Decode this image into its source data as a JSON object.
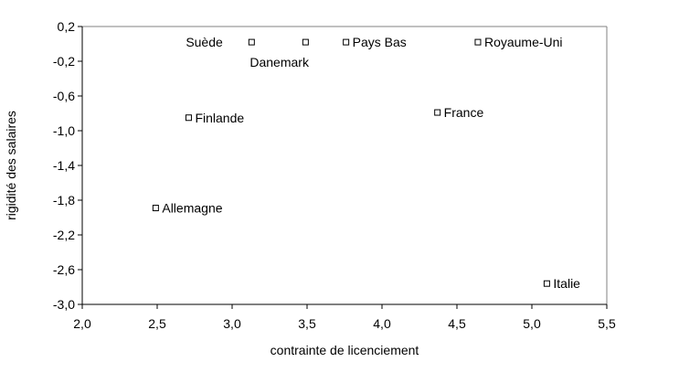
{
  "chart_data": {
    "type": "scatter",
    "title": "",
    "xlabel": "contrainte de licenciement",
    "ylabel": "rigidité des salaires",
    "xlim": [
      2.0,
      5.5
    ],
    "ylim": [
      -3.0,
      0.2
    ],
    "xticks": [
      "2,0",
      "2,5",
      "3,0",
      "3,5",
      "4,0",
      "4,5",
      "5,0",
      "5,5"
    ],
    "yticks": [
      "0,2",
      "-0,2",
      "-0,6",
      "-1,0",
      "-1,4",
      "-1,8",
      "-2,2",
      "-2,6",
      "-3,0"
    ],
    "grid": false,
    "marker": "hollow-square",
    "points": [
      {
        "label": "Suède",
        "x": 3.13,
        "y": 0.02
      },
      {
        "label": "Danemark",
        "x": 3.49,
        "y": 0.02
      },
      {
        "label": "Pays Bas",
        "x": 3.76,
        "y": 0.02
      },
      {
        "label": "Royaume-Uni",
        "x": 4.64,
        "y": 0.02
      },
      {
        "label": "Finlande",
        "x": 2.71,
        "y": -0.85
      },
      {
        "label": "France",
        "x": 4.37,
        "y": -0.79
      },
      {
        "label": "Allemagne",
        "x": 2.49,
        "y": -1.89
      },
      {
        "label": "Italie",
        "x": 5.1,
        "y": -2.76
      }
    ]
  }
}
